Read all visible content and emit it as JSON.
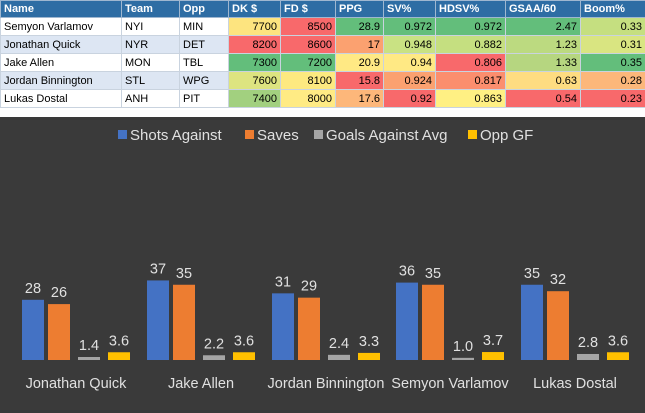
{
  "table": {
    "headers": [
      "Name",
      "Team",
      "Opp",
      "DK $",
      "FD $",
      "PPG",
      "SV%",
      "HDSV%",
      "GSAA/60",
      "Boom%"
    ],
    "rows": [
      {
        "cells": [
          "Semyon Varlamov",
          "NYI",
          "MIN",
          "7700",
          "8500",
          "28.9",
          "0.972",
          "0.972",
          "2.47",
          "0.33"
        ],
        "colors": [
          "",
          "",
          "",
          "#fde47f",
          "#f8696b",
          "#63be7b",
          "#63be7b",
          "#63be7b",
          "#63be7b",
          "#c5df80"
        ]
      },
      {
        "cells": [
          "Jonathan Quick",
          "NYR",
          "DET",
          "8200",
          "8600",
          "17",
          "0.948",
          "0.882",
          "1.23",
          "0.31"
        ],
        "colors": [
          "",
          "",
          "",
          "#f8696b",
          "#f8696b",
          "#fba170",
          "#c9e283",
          "#c5df80",
          "#bcda80",
          "#d9e581"
        ]
      },
      {
        "cells": [
          "Jake Allen",
          "MON",
          "TBL",
          "7300",
          "7200",
          "20.9",
          "0.94",
          "0.806",
          "1.33",
          "0.35"
        ],
        "colors": [
          "",
          "",
          "",
          "#63be7b",
          "#63be7b",
          "#ffe984",
          "#ffe984",
          "#f8696b",
          "#b6d680",
          "#63be7b"
        ]
      },
      {
        "cells": [
          "Jordan Binnington",
          "STL",
          "WPG",
          "7600",
          "8100",
          "15.8",
          "0.924",
          "0.817",
          "0.63",
          "0.28"
        ],
        "colors": [
          "",
          "",
          "",
          "#dde480",
          "#fde980",
          "#f8696b",
          "#fba170",
          "#fb8e6e",
          "#fedc81",
          "#fcb77a"
        ]
      },
      {
        "cells": [
          "Lukas Dostal",
          "ANH",
          "PIT",
          "7400",
          "8000",
          "17.6",
          "0.92",
          "0.863",
          "0.54",
          "0.23"
        ],
        "colors": [
          "",
          "",
          "",
          "#a2d07f",
          "#ffeb84",
          "#fdb77a",
          "#f8696b",
          "#fff083",
          "#f8696b",
          "#f8696b"
        ]
      }
    ]
  },
  "chart_data": {
    "type": "bar",
    "categories": [
      "Jonathan Quick",
      "Jake Allen",
      "Jordan Binnington",
      "Semyon Varlamov",
      "Lukas Dostal"
    ],
    "series": [
      {
        "name": "Shots Against",
        "values": [
          28,
          37,
          31,
          36,
          35
        ],
        "labels": [
          "28",
          "37",
          "31",
          "36",
          "35"
        ],
        "color": "#4472c4"
      },
      {
        "name": "Saves",
        "values": [
          26,
          35,
          29,
          35,
          32
        ],
        "labels": [
          "26",
          "35",
          "29",
          "35",
          "32"
        ],
        "color": "#ed7d31"
      },
      {
        "name": "Goals Against Avg",
        "values": [
          1.4,
          2.2,
          2.4,
          1.0,
          2.8
        ],
        "labels": [
          "1.4",
          "2.2",
          "2.4",
          "1.0",
          "2.8"
        ],
        "color": "#a5a5a5"
      },
      {
        "name": "Opp GF",
        "values": [
          3.6,
          3.6,
          3.3,
          3.7,
          3.6
        ],
        "labels": [
          "3.6",
          "3.6",
          "3.3",
          "3.7",
          "3.6"
        ],
        "color": "#ffc000"
      }
    ],
    "ylim": [
      0,
      40
    ],
    "legend": "top",
    "grid": false,
    "background": "#3a3a3a"
  }
}
